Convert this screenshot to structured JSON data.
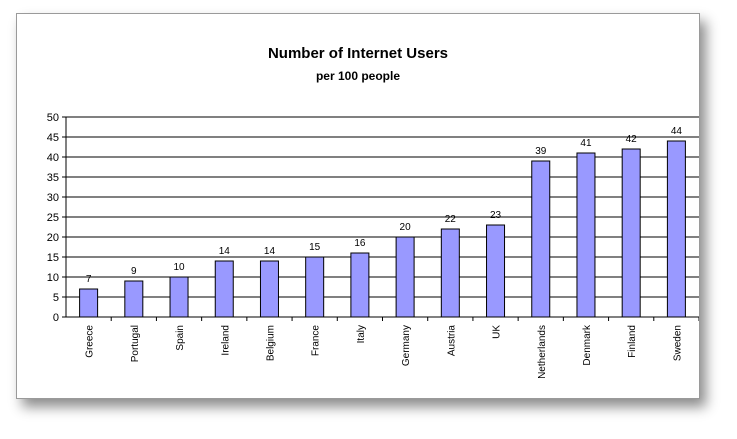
{
  "chart_data": {
    "type": "bar",
    "title": "Number of Internet Users",
    "subtitle": "per 100 people",
    "xlabel": "",
    "ylabel": "",
    "categories": [
      "Greece",
      "Portugal",
      "Spain",
      "Ireland",
      "Belgium",
      "France",
      "Italy",
      "Germany",
      "Austria",
      "UK",
      "Netherlands",
      "Denmark",
      "Finland",
      "Sweden"
    ],
    "values": [
      7,
      9,
      10,
      14,
      14,
      15,
      16,
      20,
      22,
      23,
      39,
      41,
      42,
      44
    ],
    "ylim": [
      0,
      50
    ],
    "yticks": [
      0,
      5,
      10,
      15,
      20,
      25,
      30,
      35,
      40,
      45,
      50
    ],
    "grid": true,
    "legend": "none",
    "bar_color": "#9999ff",
    "bar_edge_color": "#000000",
    "data_labels": true
  }
}
